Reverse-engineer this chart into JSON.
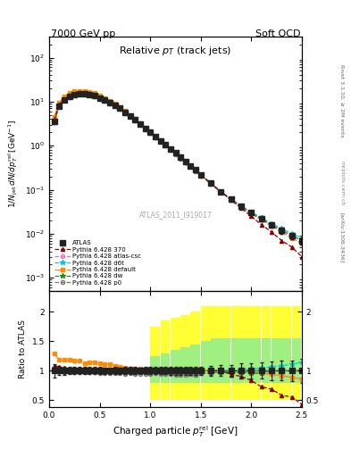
{
  "header_left": "7000 GeV pp",
  "header_right": "Soft QCD",
  "right_label_1": "Rivet 3.1.10, ≥ 2M events",
  "arxiv_label": "[arXiv:1306.3436]",
  "watermark": "mcplots.cern.ch",
  "atlas_label": "ATLAS_2011_I919017",
  "xlabel": "Charged particle $p_T^{\\rm rel}$ [GeV]",
  "ylabel": "$1/N_{\\rm jet}\\,dN/dp_T^{\\rm rel}\\,[{\\rm GeV}^{-1}]$",
  "ylabel_ratio": "Ratio to ATLAS",
  "title_plot": "Relative $p_T$ (track jets)",
  "xlim": [
    0.0,
    2.5
  ],
  "ylim_main": [
    0.0005,
    300
  ],
  "ylim_ratio": [
    0.39,
    2.35
  ],
  "atlas_x": [
    0.05,
    0.1,
    0.15,
    0.2,
    0.25,
    0.3,
    0.35,
    0.4,
    0.45,
    0.5,
    0.55,
    0.6,
    0.65,
    0.7,
    0.75,
    0.8,
    0.85,
    0.9,
    0.95,
    1.0,
    1.05,
    1.1,
    1.15,
    1.2,
    1.25,
    1.3,
    1.35,
    1.4,
    1.45,
    1.5,
    1.6,
    1.7,
    1.8,
    1.9,
    2.0,
    2.1,
    2.2,
    2.3,
    2.4,
    2.5
  ],
  "atlas_y": [
    3.5,
    8.0,
    11.0,
    13.0,
    14.5,
    15.0,
    15.0,
    14.5,
    13.5,
    12.0,
    10.8,
    9.5,
    8.3,
    7.0,
    5.8,
    4.8,
    3.9,
    3.1,
    2.5,
    2.0,
    1.6,
    1.3,
    1.05,
    0.85,
    0.68,
    0.55,
    0.44,
    0.35,
    0.28,
    0.22,
    0.14,
    0.09,
    0.062,
    0.042,
    0.03,
    0.022,
    0.016,
    0.012,
    0.009,
    0.007
  ],
  "atlas_yerr": [
    0.4,
    0.6,
    0.7,
    0.8,
    0.9,
    0.9,
    0.9,
    0.9,
    0.8,
    0.7,
    0.6,
    0.55,
    0.5,
    0.4,
    0.35,
    0.28,
    0.23,
    0.18,
    0.15,
    0.12,
    0.1,
    0.08,
    0.065,
    0.055,
    0.044,
    0.036,
    0.03,
    0.025,
    0.02,
    0.016,
    0.012,
    0.008,
    0.006,
    0.005,
    0.004,
    0.003,
    0.0025,
    0.002,
    0.0016,
    0.0014
  ],
  "py370_y": [
    3.8,
    8.5,
    11.5,
    13.5,
    15.0,
    15.5,
    15.3,
    14.8,
    13.8,
    12.2,
    11.0,
    9.7,
    8.5,
    7.1,
    5.9,
    4.9,
    3.95,
    3.15,
    2.55,
    2.05,
    1.65,
    1.32,
    1.07,
    0.86,
    0.69,
    0.56,
    0.45,
    0.36,
    0.28,
    0.22,
    0.14,
    0.09,
    0.058,
    0.038,
    0.025,
    0.016,
    0.011,
    0.007,
    0.005,
    0.003
  ],
  "pyatlas_y": [
    3.6,
    8.2,
    11.2,
    13.2,
    14.7,
    15.2,
    15.0,
    14.5,
    13.5,
    11.8,
    10.7,
    9.4,
    8.2,
    6.9,
    5.7,
    4.7,
    3.8,
    3.05,
    2.45,
    1.95,
    1.57,
    1.26,
    1.02,
    0.82,
    0.65,
    0.53,
    0.42,
    0.34,
    0.27,
    0.21,
    0.135,
    0.088,
    0.06,
    0.041,
    0.029,
    0.021,
    0.015,
    0.011,
    0.008,
    0.006
  ],
  "pyd6t_y": [
    3.7,
    8.3,
    11.3,
    13.3,
    14.8,
    15.3,
    15.1,
    14.6,
    13.6,
    12.0,
    10.8,
    9.5,
    8.3,
    7.0,
    5.8,
    4.8,
    3.9,
    3.1,
    2.5,
    2.0,
    1.61,
    1.29,
    1.04,
    0.84,
    0.67,
    0.54,
    0.44,
    0.35,
    0.28,
    0.22,
    0.14,
    0.091,
    0.062,
    0.043,
    0.031,
    0.023,
    0.017,
    0.013,
    0.01,
    0.008
  ],
  "pydef_y": [
    4.5,
    9.5,
    13.0,
    15.5,
    17.0,
    17.5,
    17.0,
    16.5,
    15.5,
    13.5,
    12.0,
    10.5,
    9.0,
    7.5,
    6.1,
    5.0,
    4.0,
    3.2,
    2.55,
    2.05,
    1.64,
    1.31,
    1.05,
    0.85,
    0.68,
    0.55,
    0.44,
    0.35,
    0.28,
    0.22,
    0.14,
    0.09,
    0.06,
    0.041,
    0.029,
    0.021,
    0.015,
    0.011,
    0.008,
    0.006
  ],
  "pydw_y": [
    3.6,
    8.1,
    11.0,
    13.0,
    14.5,
    15.0,
    14.9,
    14.4,
    13.4,
    11.8,
    10.6,
    9.3,
    8.1,
    6.8,
    5.6,
    4.65,
    3.75,
    3.0,
    2.42,
    1.93,
    1.55,
    1.24,
    1.0,
    0.81,
    0.64,
    0.52,
    0.42,
    0.33,
    0.26,
    0.21,
    0.135,
    0.088,
    0.06,
    0.041,
    0.029,
    0.021,
    0.016,
    0.012,
    0.009,
    0.007
  ],
  "pyp0_y": [
    3.5,
    7.9,
    10.8,
    12.8,
    14.2,
    14.8,
    14.7,
    14.2,
    13.2,
    11.6,
    10.4,
    9.1,
    8.0,
    6.7,
    5.5,
    4.6,
    3.7,
    2.95,
    2.38,
    1.9,
    1.53,
    1.23,
    0.99,
    0.8,
    0.63,
    0.51,
    0.41,
    0.33,
    0.26,
    0.21,
    0.135,
    0.088,
    0.061,
    0.042,
    0.03,
    0.022,
    0.016,
    0.012,
    0.009,
    0.007
  ],
  "band_x": [
    1.0,
    1.1,
    1.2,
    1.3,
    1.4,
    1.5,
    1.6,
    1.7,
    1.8,
    1.9,
    2.0,
    2.1,
    2.2,
    2.3,
    2.4,
    2.5
  ],
  "band_yellow_lo": [
    0.5,
    0.5,
    0.5,
    0.5,
    0.5,
    0.5,
    0.5,
    0.5,
    0.5,
    0.5,
    0.5,
    0.5,
    0.5,
    0.5,
    0.5,
    0.5
  ],
  "band_yellow_hi": [
    1.75,
    1.85,
    1.9,
    1.95,
    2.0,
    2.1,
    2.1,
    2.1,
    2.1,
    2.1,
    2.1,
    2.1,
    2.1,
    2.1,
    2.1,
    2.1
  ],
  "band_green_lo": [
    0.8,
    0.8,
    0.8,
    0.8,
    0.8,
    0.8,
    0.8,
    0.8,
    0.8,
    0.8,
    0.8,
    0.8,
    0.8,
    0.8,
    0.8,
    0.8
  ],
  "band_green_hi": [
    1.25,
    1.3,
    1.35,
    1.4,
    1.45,
    1.5,
    1.55,
    1.55,
    1.55,
    1.55,
    1.55,
    1.55,
    1.55,
    1.55,
    1.55,
    1.55
  ],
  "color_atlas": "#222222",
  "color_370": "#8B0000",
  "color_atlas_csc": "#FF69B4",
  "color_d6t": "#00CED1",
  "color_default": "#FF8C00",
  "color_dw": "#228B22",
  "color_p0": "#777777",
  "band_yellow": "#FFFF00",
  "band_green": "#90EE90"
}
